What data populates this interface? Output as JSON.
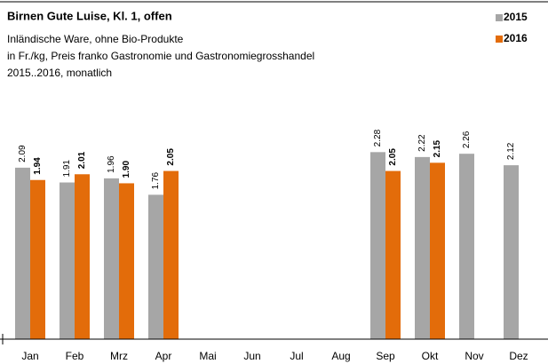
{
  "chart_data": {
    "type": "bar",
    "title": "Birnen Gute Luise, Kl. 1, offen",
    "subtitle": [
      "Inländische Ware, ohne Bio-Produkte",
      "in Fr./kg, Preis franko Gastronomie und Gastronomiegrosshandel",
      "2015..2016, monatlich"
    ],
    "categories": [
      "Jan",
      "Feb",
      "Mrz",
      "Apr",
      "Mai",
      "Jun",
      "Jul",
      "Aug",
      "Sep",
      "Okt",
      "Nov",
      "Dez"
    ],
    "series": [
      {
        "name": "2015",
        "color": "#a6a6a6",
        "values": [
          2.09,
          1.91,
          1.96,
          1.76,
          null,
          null,
          null,
          null,
          2.28,
          2.22,
          2.26,
          2.12
        ],
        "value_labels": [
          "2.09",
          "1.91",
          "1.96",
          "1.76",
          null,
          null,
          null,
          null,
          "2.28",
          "2.22",
          "2.26",
          "2.12"
        ]
      },
      {
        "name": "2016",
        "color": "#e36c0a",
        "values": [
          1.94,
          2.01,
          1.9,
          2.05,
          null,
          null,
          null,
          null,
          2.05,
          2.15,
          null,
          null
        ],
        "value_labels": [
          "1.94",
          "2.01",
          "1.90",
          "2.05",
          null,
          null,
          null,
          null,
          "2.05",
          "2.15",
          null,
          null
        ]
      }
    ],
    "ylim": [
      0,
      2.5
    ],
    "legend": "top-right"
  }
}
